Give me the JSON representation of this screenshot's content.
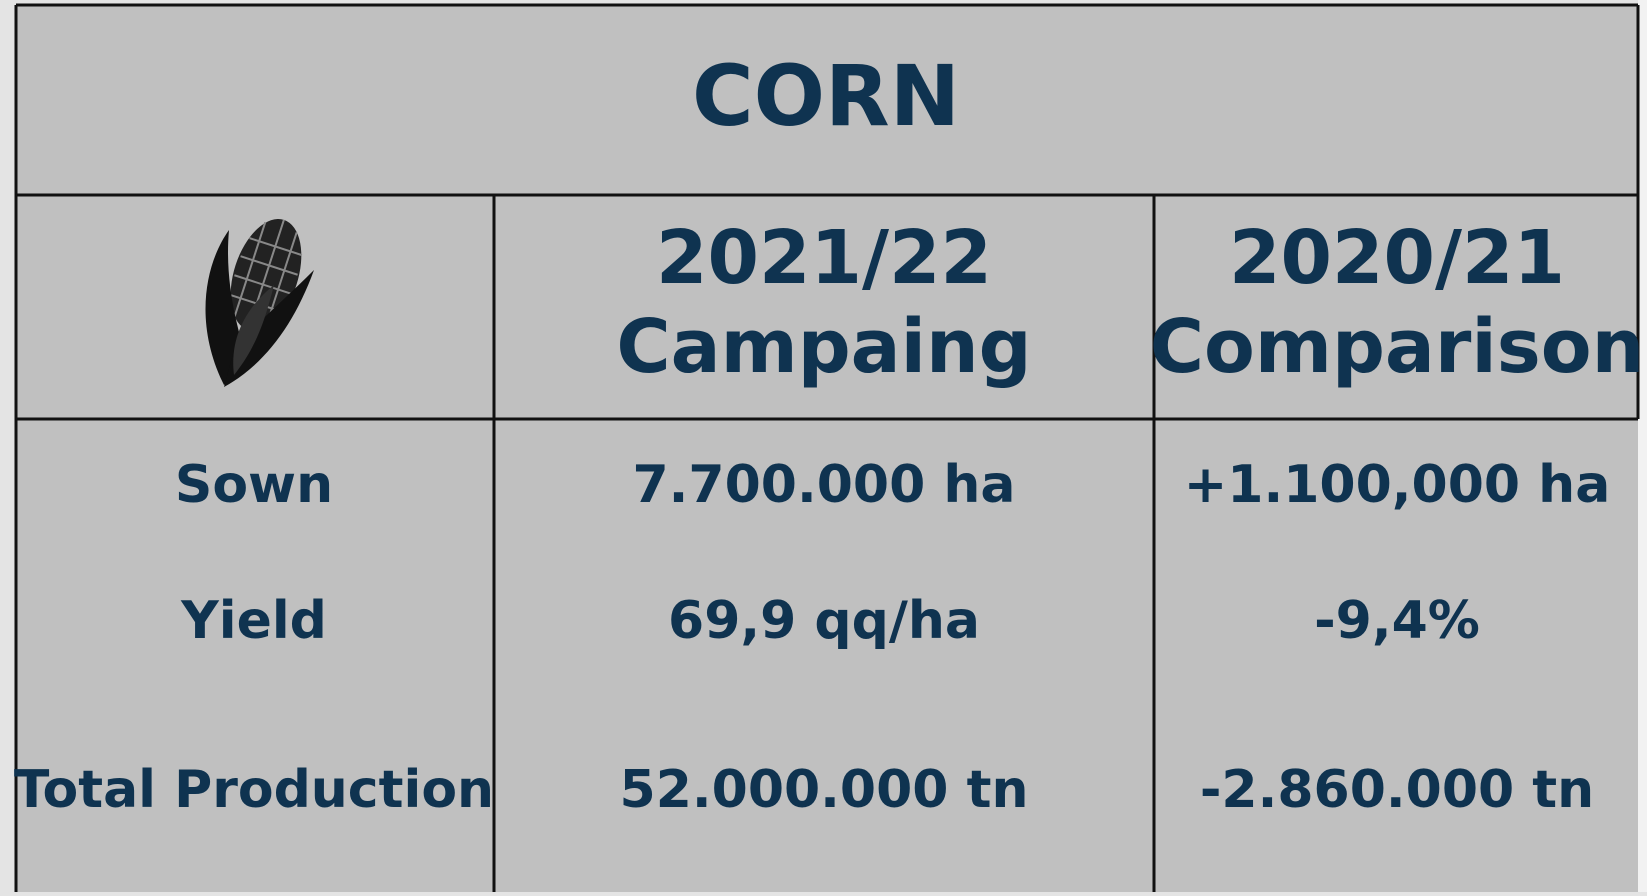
{
  "table": {
    "title": "CORN",
    "headers": [
      [
        "2021/22",
        "Campaing"
      ],
      [
        "2020/21",
        "Comparison"
      ]
    ],
    "rows": [
      [
        "Sown",
        "7.700.000 ha",
        "+1.100,000 ha"
      ],
      [
        "Yield",
        "69,9 qq/ha",
        "-9,4%"
      ],
      [
        "Total Production",
        "52.000.000 tn",
        "-2.860.000 tn"
      ]
    ]
  }
}
